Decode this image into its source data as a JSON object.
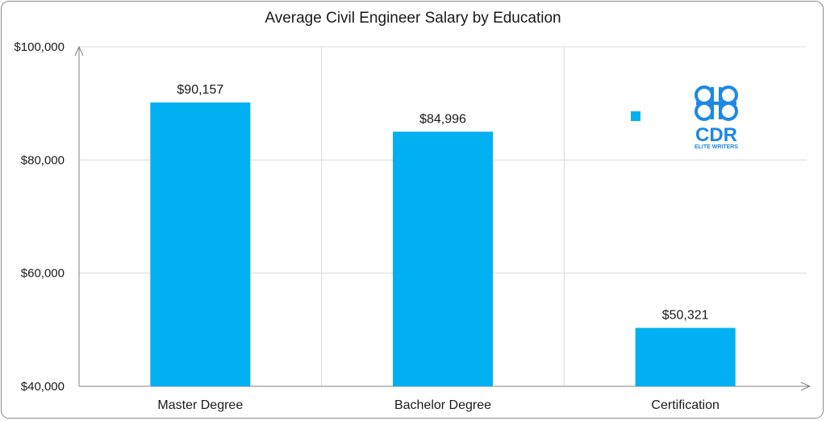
{
  "chart_data": {
    "type": "bar",
    "title": "Average Civil Engineer Salary by Education",
    "categories": [
      "Master Degree",
      "Bachelor Degree",
      "Certification"
    ],
    "values": [
      90157,
      84996,
      50321
    ],
    "data_labels": [
      "$90,157",
      "$84,996",
      "$50,321"
    ],
    "ylim": [
      40000,
      100000
    ],
    "yticks": [
      40000,
      60000,
      80000,
      100000
    ],
    "ytick_labels": [
      "$40,000",
      "$60,000",
      "$80,000",
      "$100,000"
    ],
    "grid": true,
    "legend": "top-right",
    "bar_color": "#00b0f0"
  },
  "logo": {
    "name": "cdr-logo",
    "text": "CDR",
    "subtext": "ELITE WRITERS",
    "color": "#1e88e5"
  }
}
